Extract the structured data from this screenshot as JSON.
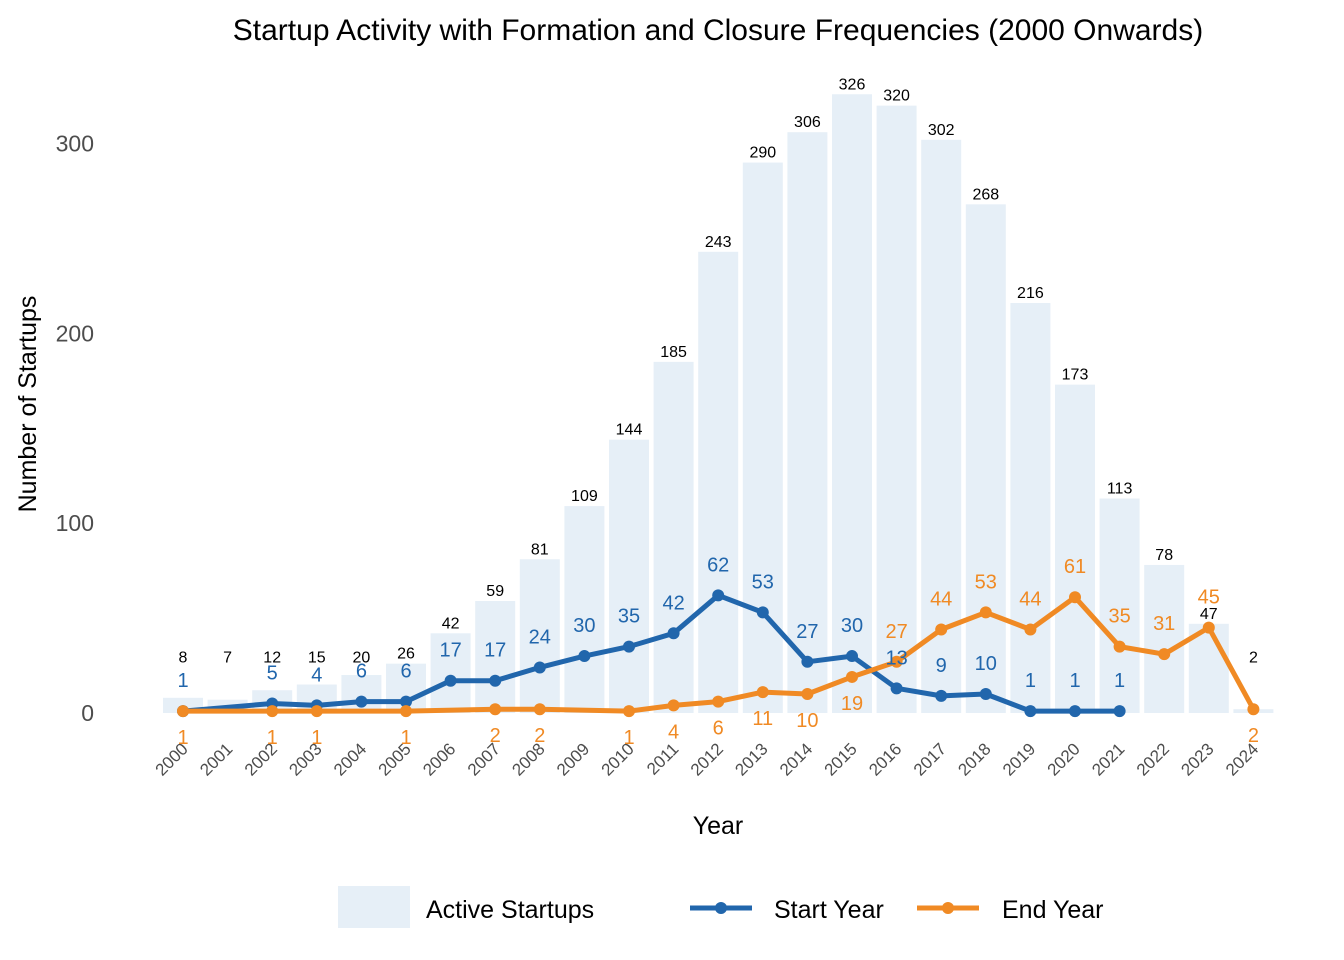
{
  "chart_data": {
    "type": "bar",
    "title": "Startup Activity with Formation and Closure Frequencies (2000 Onwards)",
    "xlabel": "Year",
    "ylabel": "Number of Startups",
    "ylim": [
      0,
      330
    ],
    "yticks": [
      0,
      100,
      200,
      300
    ],
    "grid": false,
    "legend_position": "bottom",
    "categories": [
      "2000",
      "2001",
      "2002",
      "2003",
      "2004",
      "2005",
      "2006",
      "2007",
      "2008",
      "2009",
      "2010",
      "2011",
      "2012",
      "2013",
      "2014",
      "2015",
      "2016",
      "2017",
      "2018",
      "2019",
      "2020",
      "2021",
      "2022",
      "2023",
      "2024"
    ],
    "bars": {
      "name": "Active Startups",
      "color": "#e6eff7",
      "values": [
        8,
        7,
        12,
        15,
        20,
        26,
        42,
        59,
        81,
        109,
        144,
        185,
        243,
        290,
        306,
        326,
        320,
        302,
        268,
        216,
        173,
        113,
        78,
        47,
        2
      ]
    },
    "series": [
      {
        "name": "Start Year",
        "type": "line",
        "color": "#2166ac",
        "values": [
          1,
          null,
          5,
          4,
          6,
          6,
          17,
          17,
          24,
          30,
          35,
          42,
          62,
          53,
          27,
          30,
          13,
          9,
          10,
          1,
          1,
          1,
          null,
          null,
          null
        ]
      },
      {
        "name": "End Year",
        "type": "line",
        "color": "#f08a24",
        "values": [
          1,
          null,
          1,
          1,
          null,
          1,
          null,
          2,
          2,
          null,
          1,
          4,
          6,
          11,
          10,
          19,
          27,
          44,
          53,
          44,
          61,
          35,
          31,
          45,
          2
        ]
      }
    ]
  }
}
